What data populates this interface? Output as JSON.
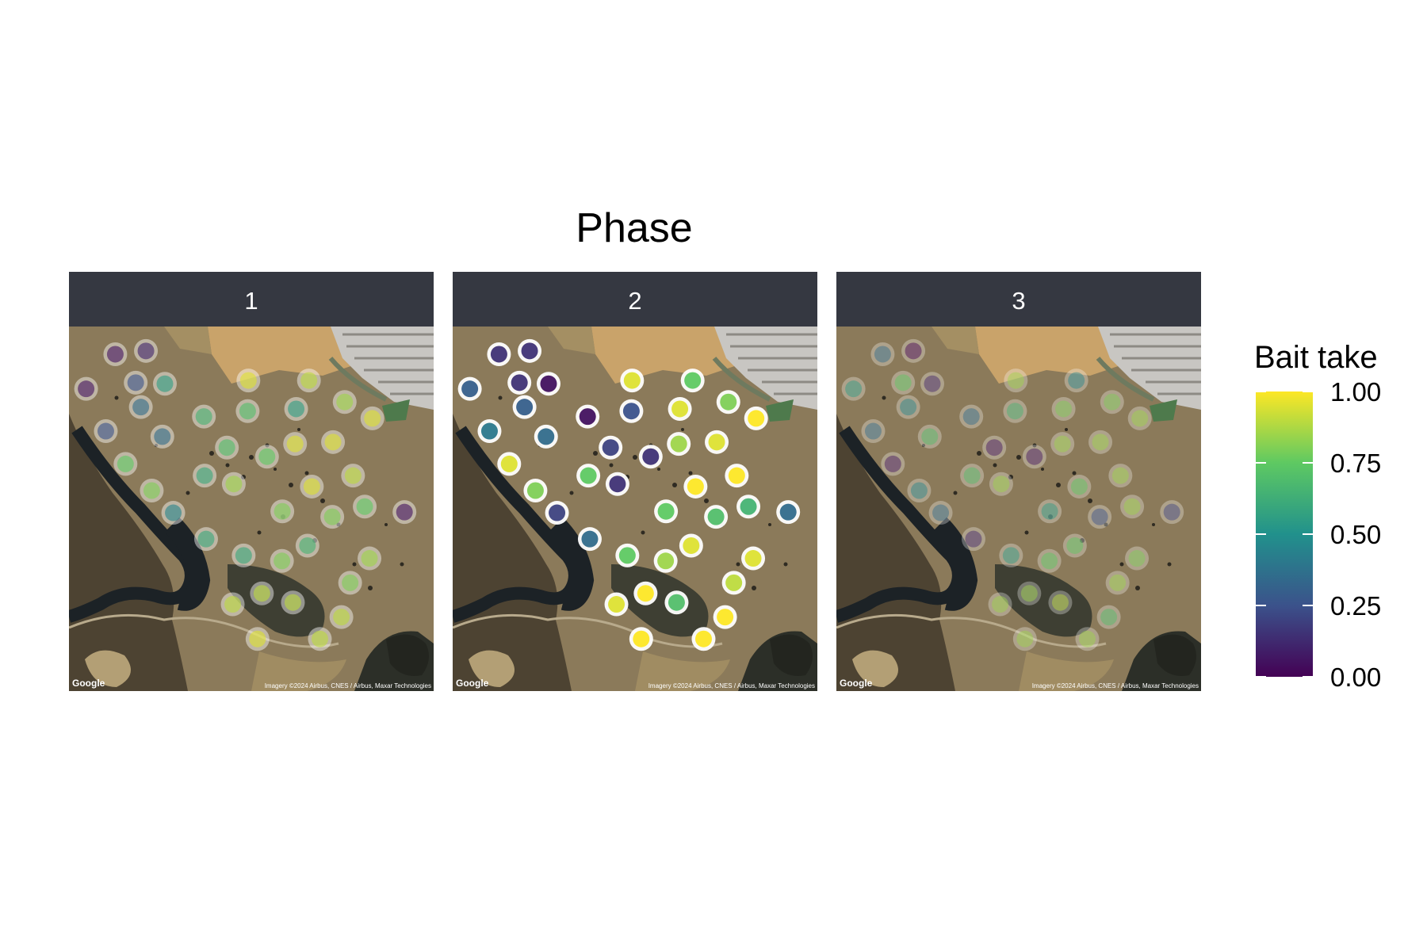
{
  "title": "Phase",
  "legend": {
    "title": "Bait take",
    "labels": [
      "1.00",
      "0.75",
      "0.50",
      "0.25",
      "0.00"
    ],
    "stops": [
      1.0,
      0.75,
      0.5,
      0.25,
      0.0
    ],
    "colormap": [
      "#440154",
      "#3b528b",
      "#21918c",
      "#5ec962",
      "#fde725"
    ]
  },
  "map_credits": {
    "logo": "Google",
    "imagery": "Imagery ©2024 Airbus, CNES / Airbus, Maxar Technologies"
  },
  "colors": {
    "strip_bg": "#353841",
    "strip_text": "#ffffff",
    "terrain": "#8b7a5a",
    "dry_field": "#c9a36a",
    "forest": "#2c2f28",
    "river": "#1c2226",
    "suburb": "#c8c6c2",
    "pond": "#4e7a4c"
  },
  "chart_data": {
    "type": "scatter",
    "title": "Phase",
    "facet_variable": "Phase",
    "color_variable": "Bait take",
    "color_range": [
      0,
      1
    ],
    "panels": [
      {
        "label": "1",
        "points": [
          {
            "x": 0.127,
            "y": 0.924,
            "value": 0.05
          },
          {
            "x": 0.211,
            "y": 0.933,
            "value": 0.1
          },
          {
            "x": 0.047,
            "y": 0.829,
            "value": 0.05
          },
          {
            "x": 0.183,
            "y": 0.846,
            "value": 0.25
          },
          {
            "x": 0.263,
            "y": 0.843,
            "value": 0.55
          },
          {
            "x": 0.197,
            "y": 0.779,
            "value": 0.35
          },
          {
            "x": 0.101,
            "y": 0.713,
            "value": 0.25
          },
          {
            "x": 0.256,
            "y": 0.698,
            "value": 0.35
          },
          {
            "x": 0.155,
            "y": 0.623,
            "value": 0.75
          },
          {
            "x": 0.227,
            "y": 0.55,
            "value": 0.8
          },
          {
            "x": 0.286,
            "y": 0.489,
            "value": 0.45
          },
          {
            "x": 0.37,
            "y": 0.753,
            "value": 0.65
          },
          {
            "x": 0.49,
            "y": 0.768,
            "value": 0.7
          },
          {
            "x": 0.492,
            "y": 0.852,
            "value": 0.95
          },
          {
            "x": 0.658,
            "y": 0.852,
            "value": 0.9
          },
          {
            "x": 0.756,
            "y": 0.793,
            "value": 0.85
          },
          {
            "x": 0.832,
            "y": 0.748,
            "value": 0.95
          },
          {
            "x": 0.623,
            "y": 0.774,
            "value": 0.55
          },
          {
            "x": 0.433,
            "y": 0.668,
            "value": 0.7
          },
          {
            "x": 0.543,
            "y": 0.643,
            "value": 0.75
          },
          {
            "x": 0.62,
            "y": 0.678,
            "value": 0.95
          },
          {
            "x": 0.724,
            "y": 0.683,
            "value": 0.95
          },
          {
            "x": 0.372,
            "y": 0.591,
            "value": 0.6
          },
          {
            "x": 0.452,
            "y": 0.568,
            "value": 0.85
          },
          {
            "x": 0.666,
            "y": 0.561,
            "value": 0.95
          },
          {
            "x": 0.779,
            "y": 0.591,
            "value": 0.9
          },
          {
            "x": 0.585,
            "y": 0.493,
            "value": 0.8
          },
          {
            "x": 0.722,
            "y": 0.478,
            "value": 0.8
          },
          {
            "x": 0.811,
            "y": 0.506,
            "value": 0.75
          },
          {
            "x": 0.92,
            "y": 0.491,
            "value": 0.05
          },
          {
            "x": 0.376,
            "y": 0.417,
            "value": 0.6
          },
          {
            "x": 0.479,
            "y": 0.372,
            "value": 0.6
          },
          {
            "x": 0.584,
            "y": 0.357,
            "value": 0.8
          },
          {
            "x": 0.654,
            "y": 0.399,
            "value": 0.65
          },
          {
            "x": 0.824,
            "y": 0.364,
            "value": 0.85
          },
          {
            "x": 0.771,
            "y": 0.297,
            "value": 0.8
          },
          {
            "x": 0.449,
            "y": 0.238,
            "value": 0.9
          },
          {
            "x": 0.529,
            "y": 0.268,
            "value": 0.9
          },
          {
            "x": 0.614,
            "y": 0.243,
            "value": 0.9
          },
          {
            "x": 0.747,
            "y": 0.203,
            "value": 0.9
          },
          {
            "x": 0.517,
            "y": 0.143,
            "value": 0.95
          },
          {
            "x": 0.688,
            "y": 0.143,
            "value": 0.9
          }
        ]
      },
      {
        "label": "2",
        "points": [
          {
            "x": 0.127,
            "y": 0.924,
            "value": 0.15
          },
          {
            "x": 0.211,
            "y": 0.933,
            "value": 0.15
          },
          {
            "x": 0.047,
            "y": 0.829,
            "value": 0.3
          },
          {
            "x": 0.183,
            "y": 0.846,
            "value": 0.15
          },
          {
            "x": 0.263,
            "y": 0.843,
            "value": 0.05
          },
          {
            "x": 0.197,
            "y": 0.779,
            "value": 0.3
          },
          {
            "x": 0.101,
            "y": 0.713,
            "value": 0.4
          },
          {
            "x": 0.256,
            "y": 0.698,
            "value": 0.35
          },
          {
            "x": 0.155,
            "y": 0.623,
            "value": 0.95
          },
          {
            "x": 0.227,
            "y": 0.55,
            "value": 0.8
          },
          {
            "x": 0.286,
            "y": 0.489,
            "value": 0.2
          },
          {
            "x": 0.37,
            "y": 0.753,
            "value": 0.05
          },
          {
            "x": 0.49,
            "y": 0.768,
            "value": 0.25
          },
          {
            "x": 0.492,
            "y": 0.852,
            "value": 0.95
          },
          {
            "x": 0.658,
            "y": 0.852,
            "value": 0.75
          },
          {
            "x": 0.756,
            "y": 0.793,
            "value": 0.8
          },
          {
            "x": 0.832,
            "y": 0.748,
            "value": 1.0
          },
          {
            "x": 0.623,
            "y": 0.774,
            "value": 0.95
          },
          {
            "x": 0.433,
            "y": 0.668,
            "value": 0.2
          },
          {
            "x": 0.543,
            "y": 0.643,
            "value": 0.15
          },
          {
            "x": 0.62,
            "y": 0.678,
            "value": 0.85
          },
          {
            "x": 0.724,
            "y": 0.683,
            "value": 0.95
          },
          {
            "x": 0.372,
            "y": 0.591,
            "value": 0.75
          },
          {
            "x": 0.452,
            "y": 0.568,
            "value": 0.15
          },
          {
            "x": 0.666,
            "y": 0.561,
            "value": 1.0
          },
          {
            "x": 0.779,
            "y": 0.591,
            "value": 1.0
          },
          {
            "x": 0.585,
            "y": 0.493,
            "value": 0.75
          },
          {
            "x": 0.722,
            "y": 0.478,
            "value": 0.7
          },
          {
            "x": 0.811,
            "y": 0.506,
            "value": 0.65
          },
          {
            "x": 0.92,
            "y": 0.491,
            "value": 0.35
          },
          {
            "x": 0.376,
            "y": 0.417,
            "value": 0.35
          },
          {
            "x": 0.479,
            "y": 0.372,
            "value": 0.75
          },
          {
            "x": 0.584,
            "y": 0.357,
            "value": 0.85
          },
          {
            "x": 0.654,
            "y": 0.399,
            "value": 0.95
          },
          {
            "x": 0.824,
            "y": 0.364,
            "value": 0.95
          },
          {
            "x": 0.771,
            "y": 0.297,
            "value": 0.9
          },
          {
            "x": 0.449,
            "y": 0.238,
            "value": 0.95
          },
          {
            "x": 0.529,
            "y": 0.268,
            "value": 1.0
          },
          {
            "x": 0.614,
            "y": 0.243,
            "value": 0.7
          },
          {
            "x": 0.747,
            "y": 0.203,
            "value": 1.0
          },
          {
            "x": 0.517,
            "y": 0.143,
            "value": 1.0
          },
          {
            "x": 0.688,
            "y": 0.143,
            "value": 1.0
          }
        ]
      },
      {
        "label": "3",
        "points": [
          {
            "x": 0.127,
            "y": 0.924,
            "value": 0.35
          },
          {
            "x": 0.211,
            "y": 0.933,
            "value": 0.0
          },
          {
            "x": 0.047,
            "y": 0.829,
            "value": 0.55
          },
          {
            "x": 0.183,
            "y": 0.846,
            "value": 0.75
          },
          {
            "x": 0.263,
            "y": 0.843,
            "value": 0.1
          },
          {
            "x": 0.197,
            "y": 0.779,
            "value": 0.45
          },
          {
            "x": 0.101,
            "y": 0.713,
            "value": 0.35
          },
          {
            "x": 0.256,
            "y": 0.698,
            "value": 0.7
          },
          {
            "x": 0.155,
            "y": 0.623,
            "value": 0.05
          },
          {
            "x": 0.227,
            "y": 0.55,
            "value": 0.45
          },
          {
            "x": 0.286,
            "y": 0.489,
            "value": 0.35
          },
          {
            "x": 0.37,
            "y": 0.753,
            "value": 0.35
          },
          {
            "x": 0.49,
            "y": 0.768,
            "value": 0.65
          },
          {
            "x": 0.492,
            "y": 0.852,
            "value": 0.85
          },
          {
            "x": 0.658,
            "y": 0.852,
            "value": 0.45
          },
          {
            "x": 0.756,
            "y": 0.793,
            "value": 0.8
          },
          {
            "x": 0.832,
            "y": 0.748,
            "value": 0.85
          },
          {
            "x": 0.623,
            "y": 0.774,
            "value": 0.8
          },
          {
            "x": 0.433,
            "y": 0.668,
            "value": 0.05
          },
          {
            "x": 0.543,
            "y": 0.643,
            "value": 0.05
          },
          {
            "x": 0.62,
            "y": 0.678,
            "value": 0.85
          },
          {
            "x": 0.724,
            "y": 0.683,
            "value": 0.85
          },
          {
            "x": 0.372,
            "y": 0.591,
            "value": 0.7
          },
          {
            "x": 0.452,
            "y": 0.568,
            "value": 0.85
          },
          {
            "x": 0.666,
            "y": 0.561,
            "value": 0.75
          },
          {
            "x": 0.779,
            "y": 0.591,
            "value": 0.85
          },
          {
            "x": 0.585,
            "y": 0.493,
            "value": 0.55
          },
          {
            "x": 0.722,
            "y": 0.478,
            "value": 0.25
          },
          {
            "x": 0.811,
            "y": 0.506,
            "value": 0.85
          },
          {
            "x": 0.92,
            "y": 0.491,
            "value": 0.2
          },
          {
            "x": 0.376,
            "y": 0.417,
            "value": 0.1
          },
          {
            "x": 0.479,
            "y": 0.372,
            "value": 0.55
          },
          {
            "x": 0.584,
            "y": 0.357,
            "value": 0.75
          },
          {
            "x": 0.654,
            "y": 0.399,
            "value": 0.75
          },
          {
            "x": 0.824,
            "y": 0.364,
            "value": 0.8
          },
          {
            "x": 0.771,
            "y": 0.297,
            "value": 0.85
          },
          {
            "x": 0.449,
            "y": 0.238,
            "value": 0.85
          },
          {
            "x": 0.529,
            "y": 0.268,
            "value": 0.85
          },
          {
            "x": 0.614,
            "y": 0.243,
            "value": 0.9
          },
          {
            "x": 0.747,
            "y": 0.203,
            "value": 0.7
          },
          {
            "x": 0.517,
            "y": 0.143,
            "value": 0.85
          },
          {
            "x": 0.688,
            "y": 0.143,
            "value": 0.85
          }
        ]
      }
    ]
  }
}
